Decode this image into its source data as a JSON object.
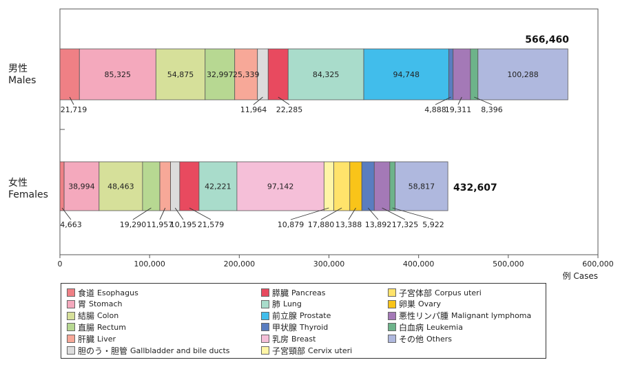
{
  "chart_data": {
    "type": "bar",
    "orientation": "horizontal",
    "stacked": true,
    "title": "",
    "xlabel": "例 Cases",
    "xlim": [
      0,
      600000
    ],
    "x_ticks": [
      0,
      100000,
      200000,
      300000,
      400000,
      500000,
      600000
    ],
    "x_tick_labels": [
      "0",
      "100,000",
      "200,000",
      "300,000",
      "400,000",
      "500,000",
      "600,000"
    ],
    "categories": [
      {
        "id": "males",
        "label_jp": "男性",
        "label_en": "Males",
        "total": 566460,
        "total_label": "566,460"
      },
      {
        "id": "females",
        "label_jp": "女性",
        "label_en": "Females",
        "total": 432607,
        "total_label": "432,607"
      }
    ],
    "series": [
      {
        "key": "esophagus",
        "jp": "食道",
        "en": "Esophagus",
        "color": "#EF8085",
        "values": [
          21719,
          4663
        ],
        "labels": [
          "21,719",
          "4,663"
        ]
      },
      {
        "key": "stomach",
        "jp": "胃",
        "en": "Stomach",
        "color": "#F4A9BD",
        "values": [
          85325,
          38994
        ],
        "labels": [
          "85,325",
          "38,994"
        ]
      },
      {
        "key": "colon",
        "jp": "結腸",
        "en": "Colon",
        "color": "#D6E09A",
        "values": [
          54875,
          48463
        ],
        "labels": [
          "54,875",
          "48,463"
        ]
      },
      {
        "key": "rectum",
        "jp": "直腸",
        "en": "Rectum",
        "color": "#B7D892",
        "values": [
          32997,
          19290
        ],
        "labels": [
          "32,997",
          "19,290"
        ]
      },
      {
        "key": "liver",
        "jp": "肝臓",
        "en": "Liver",
        "color": "#F7A898",
        "values": [
          25339,
          11957
        ],
        "labels": [
          "25,339",
          "11,957"
        ]
      },
      {
        "key": "gallbladder",
        "jp": "胆のう・胆管",
        "en": "Gallbladder and bile ducts",
        "color": "#DCDCDC",
        "values": [
          11964,
          10195
        ],
        "labels": [
          "11,964",
          "10,195"
        ]
      },
      {
        "key": "pancreas",
        "jp": "膵臓",
        "en": "Pancreas",
        "color": "#E84A5F",
        "values": [
          22285,
          21579
        ],
        "labels": [
          "22,285",
          "21,579"
        ]
      },
      {
        "key": "lung",
        "jp": "肺",
        "en": "Lung",
        "color": "#A9DCCB",
        "values": [
          84325,
          42221
        ],
        "labels": [
          "84,325",
          "42,221"
        ]
      },
      {
        "key": "breast",
        "jp": "乳房",
        "en": "Breast",
        "color": "#F5BFD8",
        "values": [
          0,
          97142
        ],
        "labels": [
          "",
          "97,142"
        ]
      },
      {
        "key": "cervix",
        "jp": "子宮頸部",
        "en": "Cervix uteri",
        "color": "#FFF5A6",
        "values": [
          0,
          10879
        ],
        "labels": [
          "",
          "10,879"
        ]
      },
      {
        "key": "corpus",
        "jp": "子宮体部",
        "en": "Corpus uteri",
        "color": "#FFE36B",
        "values": [
          0,
          17880
        ],
        "labels": [
          "",
          "17,880"
        ]
      },
      {
        "key": "ovary",
        "jp": "卵巣",
        "en": "Ovary",
        "color": "#F9C419",
        "values": [
          0,
          13388
        ],
        "labels": [
          "",
          "13,388"
        ]
      },
      {
        "key": "prostate",
        "jp": "前立腺",
        "en": "Prostate",
        "color": "#41BDEB",
        "values": [
          94748,
          0
        ],
        "labels": [
          "94,748",
          ""
        ]
      },
      {
        "key": "thyroid",
        "jp": "甲状腺",
        "en": "Thyroid",
        "color": "#5A7DC0",
        "values": [
          4888,
          13892
        ],
        "labels": [
          "4,888",
          "13,892"
        ]
      },
      {
        "key": "lymphoma",
        "jp": "悪性リンパ腫",
        "en": "Malignant lymphoma",
        "color": "#A479B7",
        "values": [
          19311,
          17325
        ],
        "labels": [
          "19,311",
          "17,325"
        ]
      },
      {
        "key": "leukemia",
        "jp": "白血病",
        "en": "Leukemia",
        "color": "#6DB38A",
        "values": [
          8396,
          5922
        ],
        "labels": [
          "8,396",
          "5,922"
        ]
      },
      {
        "key": "others",
        "jp": "その他",
        "en": "Others",
        "color": "#AFB8DE",
        "values": [
          100288,
          58817
        ],
        "labels": [
          "100,288",
          "58,817"
        ]
      }
    ],
    "stack_order": [
      [
        "esophagus",
        "stomach",
        "colon",
        "rectum",
        "liver",
        "gallbladder",
        "pancreas",
        "lung",
        "prostate",
        "thyroid",
        "lymphoma",
        "leukemia",
        "others"
      ],
      [
        "esophagus",
        "stomach",
        "colon",
        "rectum",
        "liver",
        "gallbladder",
        "pancreas",
        "lung",
        "breast",
        "cervix",
        "corpus",
        "ovary",
        "thyroid",
        "lymphoma",
        "leukemia",
        "others"
      ]
    ],
    "legend_order": [
      [
        "esophagus",
        "stomach",
        "colon",
        "rectum",
        "liver",
        "gallbladder"
      ],
      [
        "pancreas",
        "lung",
        "prostate",
        "thyroid",
        "breast",
        "cervix"
      ],
      [
        "corpus",
        "ovary",
        "lymphoma",
        "leukemia",
        "others"
      ]
    ]
  }
}
